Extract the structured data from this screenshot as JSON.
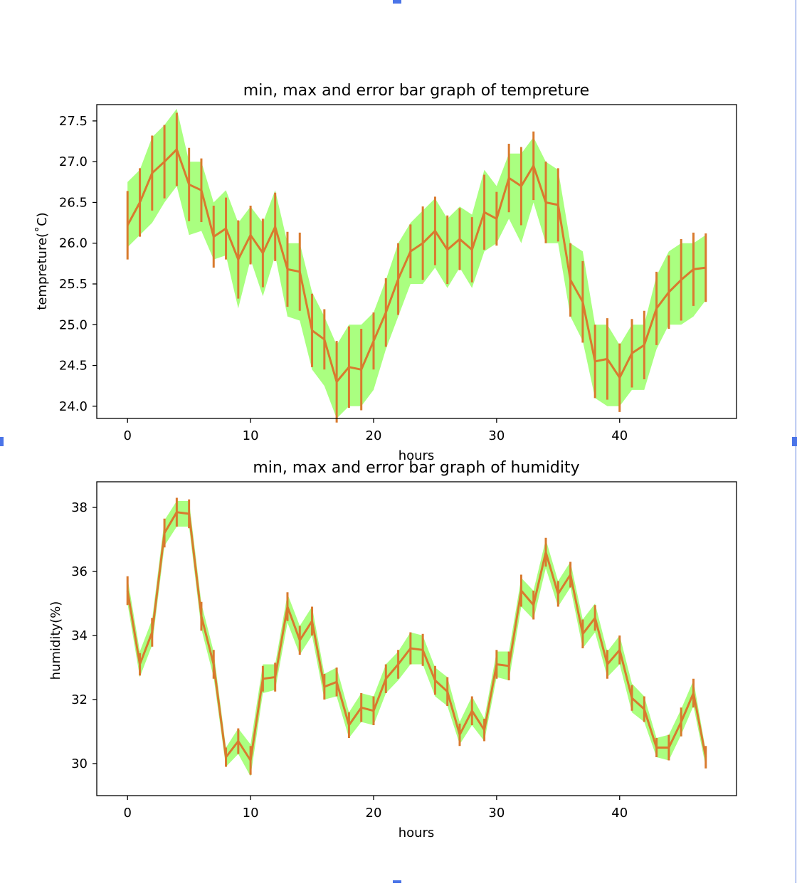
{
  "colors": {
    "band": "#aaff80",
    "line": "#d97a2e",
    "frame_handles": "#4a74e8"
  },
  "chart_data": [
    {
      "type": "line",
      "title": "min, max and error bar graph of tempreture",
      "xlabel": "hours",
      "ylabel": "tempreture(˚C)",
      "xlim": [
        -2.5,
        49.5
      ],
      "ylim": [
        23.85,
        27.7
      ],
      "xticks": [
        0,
        10,
        20,
        30,
        40
      ],
      "yticks": [
        24.0,
        24.5,
        25.0,
        25.5,
        26.0,
        26.5,
        27.0,
        27.5
      ],
      "ytick_labels": [
        "24.0",
        "24.5",
        "25.0",
        "25.5",
        "26.0",
        "26.5",
        "27.0",
        "27.5"
      ],
      "grid": false,
      "x": [
        0,
        1,
        2,
        3,
        4,
        5,
        6,
        7,
        8,
        9,
        10,
        11,
        12,
        13,
        14,
        15,
        16,
        17,
        18,
        19,
        20,
        21,
        22,
        23,
        24,
        25,
        26,
        27,
        28,
        29,
        30,
        31,
        32,
        33,
        34,
        35,
        36,
        37,
        38,
        39,
        40,
        41,
        42,
        43,
        44,
        45,
        46,
        47
      ],
      "series": [
        {
          "values": [
            26.22,
            26.5,
            26.86,
            27.0,
            27.15,
            26.72,
            26.65,
            26.08,
            26.18,
            25.8,
            26.1,
            25.88,
            26.2,
            25.68,
            25.65,
            24.93,
            24.82,
            24.3,
            24.48,
            24.45,
            24.8,
            25.15,
            25.56,
            25.9,
            26.0,
            26.15,
            25.92,
            26.05,
            25.92,
            26.38,
            26.3,
            26.8,
            26.7,
            26.95,
            26.5,
            26.47,
            25.55,
            25.28,
            24.55,
            24.58,
            24.35,
            24.65,
            24.75,
            25.2,
            25.4,
            25.55,
            25.68,
            25.7
          ],
          "err": [
            0.42,
            0.42,
            0.46,
            0.45,
            0.45,
            0.45,
            0.39,
            0.38,
            0.38,
            0.48,
            0.36,
            0.42,
            0.42,
            0.46,
            0.48,
            0.45,
            0.37,
            0.5,
            0.5,
            0.5,
            0.35,
            0.42,
            0.44,
            0.33,
            0.45,
            0.42,
            0.42,
            0.38,
            0.4,
            0.46,
            0.33,
            0.42,
            0.48,
            0.42,
            0.5,
            0.45,
            0.45,
            0.5,
            0.45,
            0.5,
            0.42,
            0.42,
            0.42,
            0.45,
            0.45,
            0.5,
            0.45,
            0.42
          ],
          "min": [
            25.95,
            26.1,
            26.25,
            26.5,
            26.7,
            26.1,
            26.15,
            25.8,
            25.85,
            25.2,
            25.8,
            25.35,
            25.85,
            25.1,
            25.05,
            24.45,
            24.25,
            23.85,
            24.0,
            24.0,
            24.2,
            24.7,
            25.1,
            25.5,
            25.5,
            25.7,
            25.45,
            25.7,
            25.45,
            25.9,
            26.0,
            26.3,
            26.0,
            26.5,
            26.0,
            26.0,
            25.1,
            24.8,
            24.1,
            24.0,
            24.0,
            24.2,
            24.2,
            24.7,
            25.0,
            25.0,
            25.1,
            25.3
          ],
          "max": [
            26.75,
            26.9,
            27.3,
            27.45,
            27.65,
            27.0,
            27.0,
            26.5,
            26.65,
            26.25,
            26.45,
            26.25,
            26.65,
            26.0,
            26.0,
            25.4,
            25.1,
            24.75,
            25.0,
            25.0,
            25.15,
            25.55,
            26.0,
            26.25,
            26.4,
            26.55,
            26.3,
            26.45,
            26.35,
            26.9,
            26.7,
            27.1,
            27.1,
            27.3,
            27.0,
            26.9,
            26.0,
            25.9,
            25.0,
            25.0,
            24.75,
            25.0,
            25.0,
            25.6,
            25.9,
            26.0,
            26.0,
            26.1
          ]
        }
      ]
    },
    {
      "type": "line",
      "title": "min, max and error bar graph of humidity",
      "xlabel": "hours",
      "ylabel": "humidity(%)",
      "xlim": [
        -2.5,
        49.5
      ],
      "ylim": [
        29.0,
        38.8
      ],
      "xticks": [
        0,
        10,
        20,
        30,
        40
      ],
      "yticks": [
        30,
        32,
        34,
        36,
        38
      ],
      "ytick_labels": [
        "30",
        "32",
        "34",
        "36",
        "38"
      ],
      "grid": false,
      "x": [
        0,
        1,
        2,
        3,
        4,
        5,
        6,
        7,
        8,
        9,
        10,
        11,
        12,
        13,
        14,
        15,
        16,
        17,
        18,
        19,
        20,
        21,
        22,
        23,
        24,
        25,
        26,
        27,
        28,
        29,
        30,
        31,
        32,
        33,
        34,
        35,
        36,
        37,
        38,
        39,
        40,
        41,
        42,
        43,
        44,
        45,
        46,
        47
      ],
      "series": [
        {
          "values": [
            35.4,
            33.1,
            34.1,
            37.2,
            37.85,
            37.8,
            34.6,
            33.1,
            30.2,
            30.7,
            30.1,
            32.65,
            32.7,
            34.9,
            33.85,
            34.45,
            32.4,
            32.55,
            31.2,
            31.75,
            31.65,
            32.65,
            33.1,
            33.6,
            33.55,
            32.6,
            32.25,
            30.9,
            31.65,
            31.05,
            33.1,
            33.05,
            35.4,
            34.95,
            36.6,
            35.3,
            35.9,
            34.05,
            34.55,
            33.1,
            33.55,
            32.05,
            31.7,
            30.5,
            30.5,
            31.3,
            32.2,
            30.2
          ],
          "err": [
            0.45,
            0.35,
            0.45,
            0.45,
            0.45,
            0.45,
            0.45,
            0.45,
            0.3,
            0.4,
            0.45,
            0.4,
            0.45,
            0.45,
            0.45,
            0.45,
            0.4,
            0.45,
            0.4,
            0.45,
            0.45,
            0.45,
            0.45,
            0.5,
            0.5,
            0.45,
            0.45,
            0.35,
            0.45,
            0.35,
            0.45,
            0.45,
            0.5,
            0.45,
            0.45,
            0.4,
            0.4,
            0.45,
            0.4,
            0.45,
            0.45,
            0.4,
            0.4,
            0.3,
            0.4,
            0.45,
            0.45,
            0.35
          ],
          "min": [
            35.0,
            32.7,
            33.7,
            36.8,
            37.4,
            37.4,
            34.2,
            32.7,
            29.9,
            30.3,
            29.6,
            32.2,
            32.3,
            34.4,
            33.4,
            34.0,
            32.0,
            32.1,
            30.8,
            31.3,
            31.2,
            32.2,
            32.6,
            33.1,
            33.1,
            32.1,
            31.8,
            30.6,
            31.2,
            30.7,
            32.7,
            32.6,
            34.9,
            34.5,
            36.1,
            34.9,
            35.5,
            33.6,
            34.1,
            32.7,
            33.1,
            31.6,
            31.3,
            30.2,
            30.1,
            30.9,
            31.8,
            29.9
          ],
          "max": [
            35.8,
            33.5,
            34.5,
            37.6,
            38.2,
            38.2,
            35.0,
            33.5,
            30.5,
            31.1,
            30.6,
            33.1,
            33.1,
            35.3,
            34.3,
            34.9,
            32.8,
            33.0,
            31.6,
            32.2,
            32.1,
            33.1,
            33.5,
            34.1,
            34.0,
            33.0,
            32.7,
            31.3,
            32.1,
            31.4,
            33.5,
            33.5,
            35.8,
            35.4,
            37.0,
            35.7,
            36.3,
            34.5,
            35.0,
            33.5,
            34.0,
            32.5,
            32.1,
            30.8,
            30.9,
            31.7,
            32.6,
            30.4
          ]
        }
      ]
    }
  ]
}
